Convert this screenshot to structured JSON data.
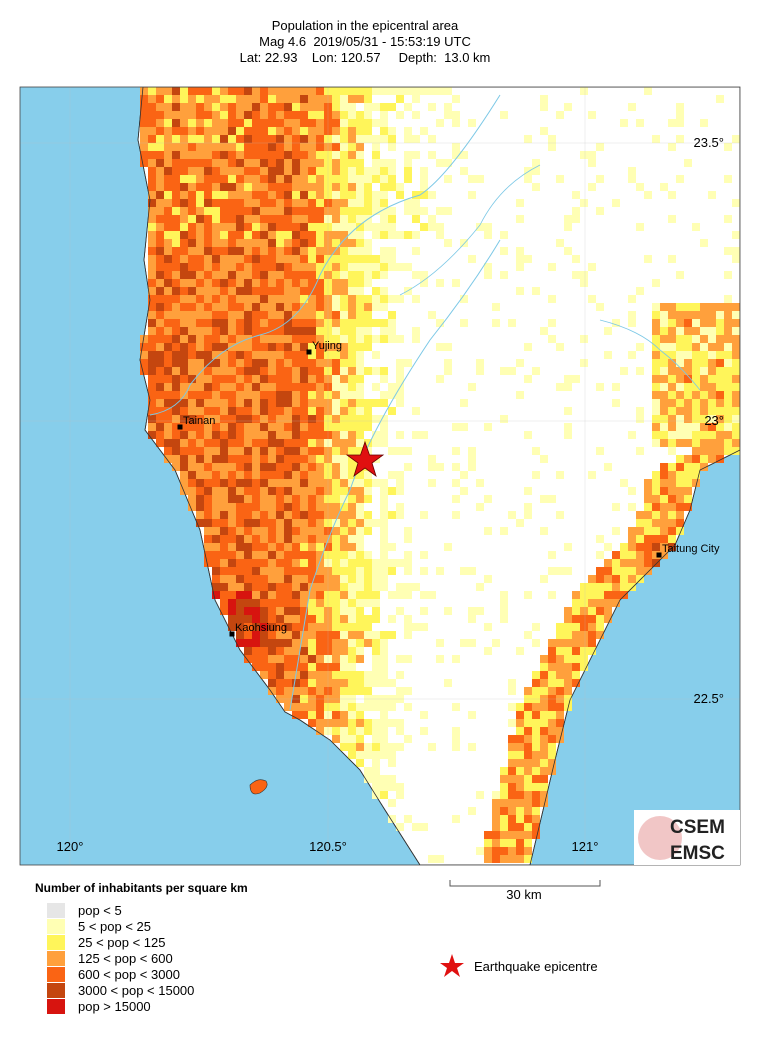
{
  "header": {
    "title": "Population in the epicentral area",
    "line2": "Mag 4.6  2019/05/31 - 15:53:19 UTC",
    "line3": "Lat: 22.93    Lon: 120.57     Depth:  13.0 km"
  },
  "map": {
    "lon_labels": [
      "120°",
      "120.5°",
      "121°"
    ],
    "lat_labels": [
      "23.5°",
      "23°",
      "22.5°"
    ],
    "cities": [
      "Yujing",
      "Tainan",
      "Kaohsiung",
      "Taitung City"
    ],
    "scale_bar": "30 km"
  },
  "legend": {
    "title": "Number of inhabitants per square km",
    "items": [
      {
        "label": "pop < 5",
        "color": "#e6e6e6"
      },
      {
        "label": "5 < pop < 25",
        "color": "#ffffb4"
      },
      {
        "label": "25 < pop < 125",
        "color": "#fff55a"
      },
      {
        "label": "125 < pop < 600",
        "color": "#ffa03c"
      },
      {
        "label": "600 < pop < 3000",
        "color": "#fa6414"
      },
      {
        "label": "3000 < pop < 15000",
        "color": "#c4460f"
      },
      {
        "label": "pop > 15000",
        "color": "#d7140f"
      }
    ],
    "epicentre": "Earthquake epicentre"
  },
  "logo": {
    "top": "CSEM",
    "bottom": "EMSC"
  }
}
